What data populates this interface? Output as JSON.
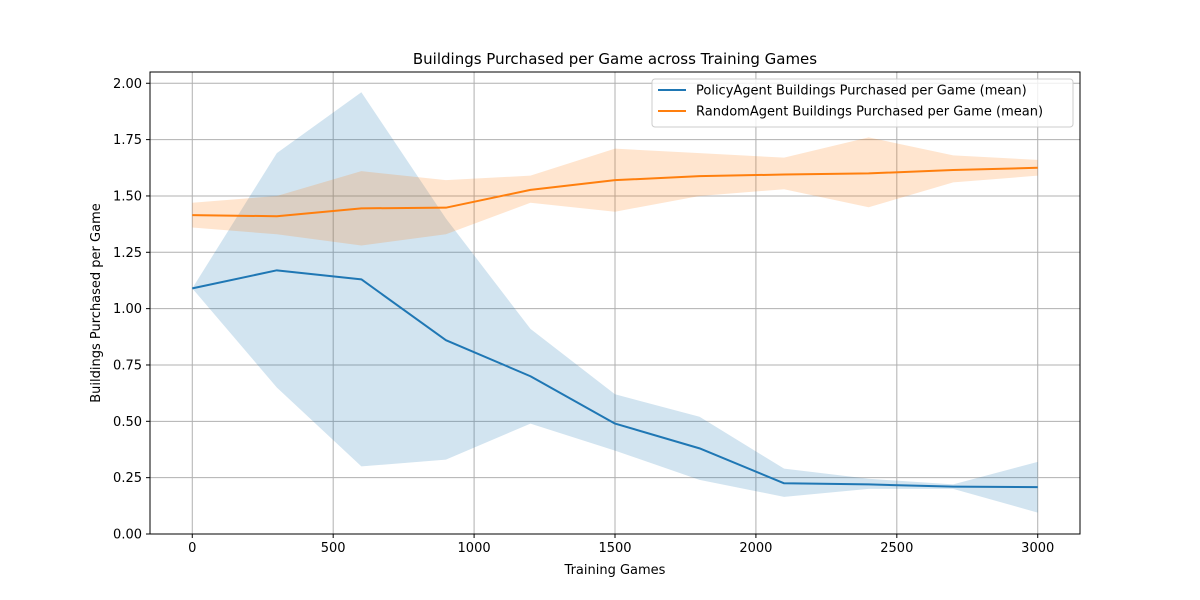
{
  "chart_data": {
    "type": "line",
    "title": "Buildings Purchased per Game across Training Games",
    "xlabel": "Training Games",
    "ylabel": "Buildings Purchased per Game",
    "xlim": [
      -150,
      3150
    ],
    "ylim": [
      0,
      2.05
    ],
    "xticks": [
      0,
      500,
      1000,
      1500,
      2000,
      2500,
      3000
    ],
    "xtick_labels": [
      "0",
      "500",
      "1000",
      "1500",
      "2000",
      "2500",
      "3000"
    ],
    "yticks": [
      0,
      0.25,
      0.5,
      0.75,
      1.0,
      1.25,
      1.5,
      1.75,
      2.0
    ],
    "ytick_labels": [
      "0.00",
      "0.25",
      "0.50",
      "0.75",
      "1.00",
      "1.25",
      "1.50",
      "1.75",
      "2.00"
    ],
    "grid": true,
    "legend_position": "top-right",
    "x": [
      0,
      300,
      600,
      900,
      1200,
      1500,
      1800,
      2100,
      2400,
      2700,
      3000
    ],
    "series": [
      {
        "name": "PolicyAgent Buildings Purchased per Game (mean)",
        "color": "#1f77b4",
        "values": [
          1.09,
          1.17,
          1.13,
          0.86,
          0.7,
          0.49,
          0.38,
          0.225,
          0.22,
          0.21,
          0.208
        ],
        "upper": [
          1.09,
          1.69,
          1.96,
          1.4,
          0.91,
          0.62,
          0.52,
          0.29,
          0.245,
          0.22,
          0.32
        ],
        "lower": [
          1.09,
          0.65,
          0.3,
          0.33,
          0.49,
          0.37,
          0.24,
          0.165,
          0.2,
          0.2,
          0.095
        ]
      },
      {
        "name": "RandomAgent Buildings Purchased per Game (mean)",
        "color": "#ff7f0e",
        "values": [
          1.415,
          1.41,
          1.445,
          1.448,
          1.527,
          1.57,
          1.588,
          1.595,
          1.6,
          1.615,
          1.625
        ],
        "upper": [
          1.47,
          1.5,
          1.61,
          1.57,
          1.59,
          1.71,
          1.69,
          1.67,
          1.76,
          1.68,
          1.66
        ],
        "lower": [
          1.36,
          1.33,
          1.28,
          1.33,
          1.47,
          1.43,
          1.5,
          1.53,
          1.45,
          1.56,
          1.59
        ]
      }
    ]
  }
}
